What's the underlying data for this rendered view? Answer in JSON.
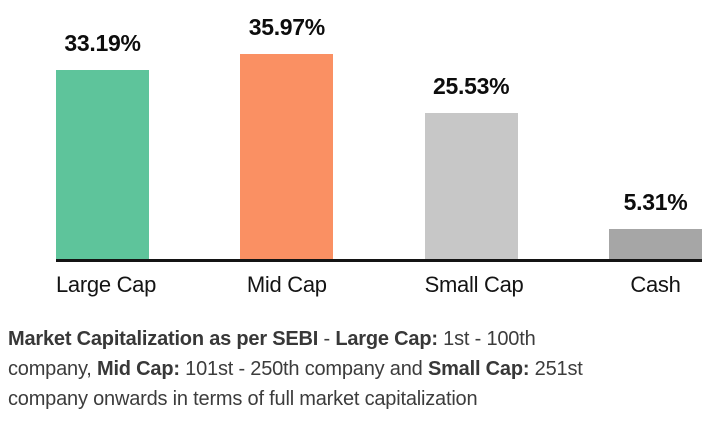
{
  "chart_data": {
    "type": "bar",
    "title": "",
    "xlabel": "",
    "ylabel": "",
    "categories": [
      "Large Cap",
      "Mid Cap",
      "Small Cap",
      "Cash"
    ],
    "values": [
      33.19,
      35.97,
      25.53,
      5.31
    ],
    "value_labels": [
      "33.19%",
      "35.97%",
      "25.53%",
      "5.31%"
    ],
    "bar_colors": [
      "#5EC49B",
      "#FA9063",
      "#C7C7C7",
      "#A6A6A6"
    ],
    "ylim": [
      0,
      40
    ],
    "grid": false,
    "legend": false,
    "axis_line_color": "#141414",
    "value_label_color": "#0d0d0d",
    "category_label_color": "#141414"
  },
  "footnote": {
    "text_color": "#3c3c3c",
    "lines": [
      {
        "segments": [
          {
            "text": "Market Capitalization as per SEBI",
            "bold": true
          },
          {
            "text": " - ",
            "bold": false
          },
          {
            "text": "Large Cap:",
            "bold": true
          },
          {
            "text": " 1st - 100th",
            "bold": false
          }
        ]
      },
      {
        "segments": [
          {
            "text": "company, ",
            "bold": false
          },
          {
            "text": "Mid Cap:",
            "bold": true
          },
          {
            "text": " 101st - 250th company and ",
            "bold": false
          },
          {
            "text": "Small Cap:",
            "bold": true
          },
          {
            "text": " 251st",
            "bold": false
          }
        ]
      },
      {
        "segments": [
          {
            "text": "company onwards in terms of full market capitalization",
            "bold": false
          }
        ]
      }
    ]
  }
}
